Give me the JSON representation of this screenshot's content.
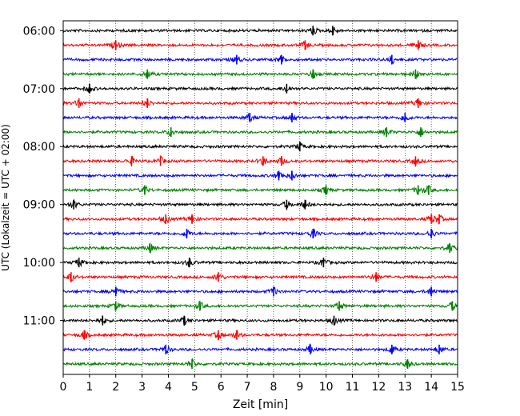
{
  "chart_data": {
    "type": "line",
    "title": "",
    "xlabel": "Zeit  [min]",
    "ylabel": "UTC (Lokalzeit = UTC + 02:00)",
    "xlim": [
      0,
      15
    ],
    "xticks": [
      "0",
      "1",
      "2",
      "3",
      "4",
      "5",
      "6",
      "7",
      "8",
      "9",
      "10",
      "11",
      "12",
      "13",
      "14",
      "15"
    ],
    "yticks": [
      "06:00",
      "07:00",
      "08:00",
      "09:00",
      "10:00",
      "11:00"
    ],
    "grid": "vertical dotted",
    "trace_interval_min": 15,
    "colors_cycle": [
      "#000000",
      "#ff0000",
      "#0000ff",
      "#008000"
    ],
    "traces": [
      {
        "start": "06:00",
        "color": "#000000",
        "spikes": [
          9.5,
          10.25
        ]
      },
      {
        "start": "06:15",
        "color": "#ff0000",
        "spikes": [
          2.0,
          9.2,
          13.5
        ]
      },
      {
        "start": "06:30",
        "color": "#0000ff",
        "spikes": [
          6.6,
          8.3,
          12.5
        ]
      },
      {
        "start": "06:45",
        "color": "#008000",
        "spikes": [
          3.2,
          9.5,
          13.4
        ]
      },
      {
        "start": "07:00",
        "color": "#000000",
        "spikes": [
          1.0,
          8.5
        ]
      },
      {
        "start": "07:15",
        "color": "#ff0000",
        "spikes": [
          0.6,
          3.2,
          13.5
        ]
      },
      {
        "start": "07:30",
        "color": "#0000ff",
        "spikes": [
          7.1,
          8.7,
          13.0
        ]
      },
      {
        "start": "07:45",
        "color": "#008000",
        "spikes": [
          4.1,
          12.3,
          13.6
        ]
      },
      {
        "start": "08:00",
        "color": "#000000",
        "spikes": [
          9.0
        ]
      },
      {
        "start": "08:15",
        "color": "#ff0000",
        "spikes": [
          2.6,
          3.7,
          7.6,
          8.3,
          13.4
        ]
      },
      {
        "start": "08:30",
        "color": "#0000ff",
        "spikes": [
          8.2,
          8.7
        ]
      },
      {
        "start": "08:45",
        "color": "#008000",
        "spikes": [
          3.1,
          10.0,
          13.5,
          13.9
        ]
      },
      {
        "start": "09:00",
        "color": "#000000",
        "spikes": [
          0.4,
          8.5,
          9.2
        ]
      },
      {
        "start": "09:15",
        "color": "#ff0000",
        "spikes": [
          3.9,
          4.9,
          14.0,
          14.3
        ]
      },
      {
        "start": "09:30",
        "color": "#0000ff",
        "spikes": [
          4.7,
          9.5,
          14.0
        ]
      },
      {
        "start": "09:45",
        "color": "#008000",
        "spikes": [
          3.3,
          14.7
        ]
      },
      {
        "start": "10:00",
        "color": "#000000",
        "spikes": [
          0.6,
          4.8,
          9.9
        ]
      },
      {
        "start": "10:15",
        "color": "#ff0000",
        "spikes": [
          0.3,
          5.9,
          11.9
        ]
      },
      {
        "start": "10:30",
        "color": "#0000ff",
        "spikes": [
          2.0,
          8.0,
          14.0
        ]
      },
      {
        "start": "10:45",
        "color": "#008000",
        "spikes": [
          2.0,
          5.2,
          10.5,
          14.8
        ]
      },
      {
        "start": "11:00",
        "color": "#000000",
        "spikes": [
          1.5,
          4.6,
          10.3
        ]
      },
      {
        "start": "11:15",
        "color": "#ff0000",
        "spikes": [
          0.8,
          5.9,
          6.6
        ]
      },
      {
        "start": "11:30",
        "color": "#0000ff",
        "spikes": [
          3.9,
          9.4,
          12.5,
          14.3
        ]
      },
      {
        "start": "11:45",
        "color": "#008000",
        "spikes": [
          4.9,
          13.1
        ]
      }
    ]
  }
}
